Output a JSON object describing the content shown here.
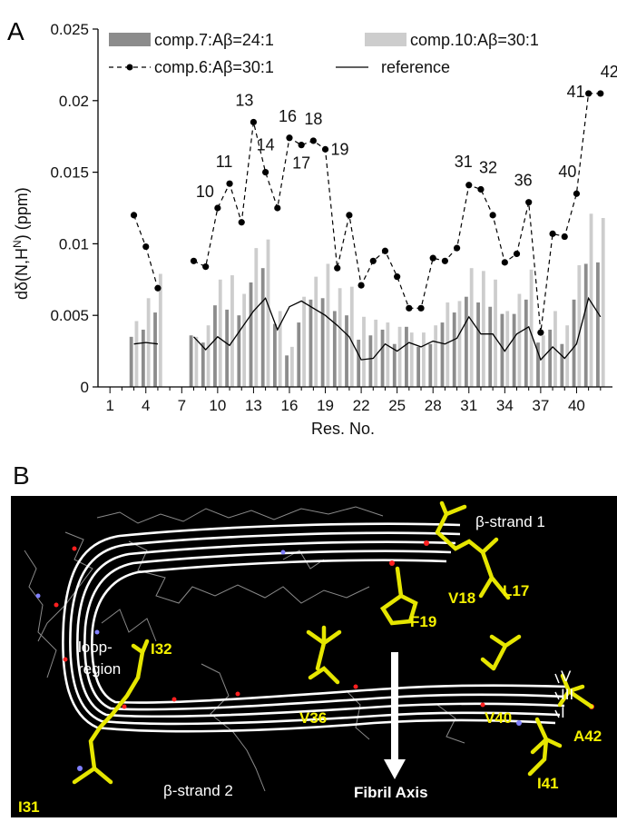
{
  "panel_a": {
    "label": "A"
  },
  "panel_b": {
    "label": "B",
    "labels": {
      "strand1": "β-strand 1",
      "strand2": "β-strand 2",
      "loop1": "loop-",
      "loop2": "region",
      "fibril_axis": "Fibril Axis",
      "sheet_v": "V",
      "sheet_iii": "III",
      "sheet_i": "I",
      "residues": [
        "L17",
        "V18",
        "F19",
        "I32",
        "V36",
        "V40",
        "A42",
        "I41",
        "I31"
      ]
    },
    "colors": {
      "background": "#000000",
      "strands": "#ffffff",
      "side_chains": "#e6e600",
      "oxygen": "#ff2020",
      "nitrogen": "#8080ff"
    }
  },
  "chart_data": {
    "type": "bar",
    "ylabel_main": "dδ(N,H",
    "ylabel_sup": "N",
    "ylabel_end": ") (ppm)",
    "xlabel": "Res. No.",
    "xlim": [
      0,
      43
    ],
    "ylim": [
      0,
      0.025
    ],
    "x_ticks": [
      1,
      4,
      7,
      10,
      13,
      16,
      19,
      22,
      25,
      28,
      31,
      34,
      37,
      40
    ],
    "y_ticks": [
      "0",
      "0.005",
      "0.01",
      "0.015",
      "0.02",
      "0.025"
    ],
    "legend": {
      "bar_dark": "comp.7:Aβ=24:1",
      "bar_light": "comp.10:Aβ=30:1",
      "line_dashed": "comp.6:Aβ=30:1",
      "line_solid": "reference"
    },
    "colors": {
      "bar_dark": "#8c8c8c",
      "bar_light": "#cdcdcd",
      "line": "#000000"
    },
    "residues": [
      3,
      4,
      5,
      8,
      9,
      10,
      11,
      12,
      13,
      14,
      15,
      16,
      17,
      18,
      19,
      20,
      21,
      22,
      23,
      24,
      25,
      26,
      27,
      28,
      29,
      30,
      31,
      32,
      33,
      34,
      35,
      36,
      37,
      38,
      39,
      40,
      41,
      42
    ],
    "series_dark": [
      0.0035,
      0.004,
      0.0052,
      0.0036,
      0.0031,
      0.0057,
      0.0054,
      0.005,
      0.0073,
      0.0083,
      0.0044,
      0.0022,
      0.0045,
      0.0061,
      0.0062,
      0.0053,
      0.005,
      0.0033,
      0.0036,
      0.004,
      0.003,
      0.0042,
      0.0028,
      0.003,
      0.0045,
      0.0052,
      0.0063,
      0.0059,
      0.0056,
      0.0051,
      0.0051,
      0.0061,
      0.0031,
      0.004,
      0.003,
      0.0061,
      0.0086,
      0.0087
    ],
    "series_light": [
      0.0046,
      0.0062,
      0.0079,
      0.0035,
      0.0043,
      0.0075,
      0.0078,
      0.0065,
      0.0097,
      0.0103,
      0.0053,
      0.0028,
      0.0063,
      0.0077,
      0.0086,
      0.0069,
      0.007,
      0.0049,
      0.0047,
      0.0045,
      0.0042,
      0.0038,
      0.0038,
      0.0043,
      0.0059,
      0.006,
      0.0083,
      0.0081,
      0.0075,
      0.0053,
      0.0065,
      0.0082,
      0.0036,
      0.0053,
      0.0043,
      0.0085,
      0.0121,
      0.0118
    ],
    "series_dashed": [
      0.012,
      0.0098,
      0.0069,
      0.0088,
      0.0084,
      0.0125,
      0.0142,
      0.0115,
      0.0185,
      0.015,
      0.0125,
      0.0174,
      0.0169,
      0.0172,
      0.0166,
      0.0083,
      0.012,
      0.0071,
      0.0088,
      0.0095,
      0.0077,
      0.0055,
      0.0055,
      0.009,
      0.0088,
      0.0097,
      0.0141,
      0.0138,
      0.012,
      0.0087,
      0.0093,
      0.0129,
      0.0038,
      0.0107,
      0.0105,
      0.0135,
      0.0205,
      0.0205
    ],
    "series_reference": [
      0.003,
      0.0031,
      0.003,
      0.0035,
      0.0026,
      0.0035,
      0.0029,
      0.0041,
      0.0053,
      0.0062,
      0.004,
      0.0056,
      0.006,
      0.0055,
      0.005,
      0.0043,
      0.0035,
      0.0019,
      0.002,
      0.003,
      0.0025,
      0.0031,
      0.0028,
      0.0032,
      0.003,
      0.0034,
      0.0049,
      0.0037,
      0.0037,
      0.0025,
      0.0037,
      0.0042,
      0.0019,
      0.0028,
      0.002,
      0.003,
      0.0062,
      0.0049
    ],
    "point_labels": [
      {
        "text": "10",
        "res": 10
      },
      {
        "text": "11",
        "res": 11
      },
      {
        "text": "13",
        "res": 13
      },
      {
        "text": "14",
        "res": 14
      },
      {
        "text": "16",
        "res": 16
      },
      {
        "text": "17",
        "res": 17
      },
      {
        "text": "18",
        "res": 18
      },
      {
        "text": "19",
        "res": 19
      },
      {
        "text": "31",
        "res": 31
      },
      {
        "text": "32",
        "res": 32
      },
      {
        "text": "36",
        "res": 36
      },
      {
        "text": "40",
        "res": 40
      },
      {
        "text": "41",
        "res": 41
      },
      {
        "text": "42",
        "res": 42
      }
    ]
  }
}
